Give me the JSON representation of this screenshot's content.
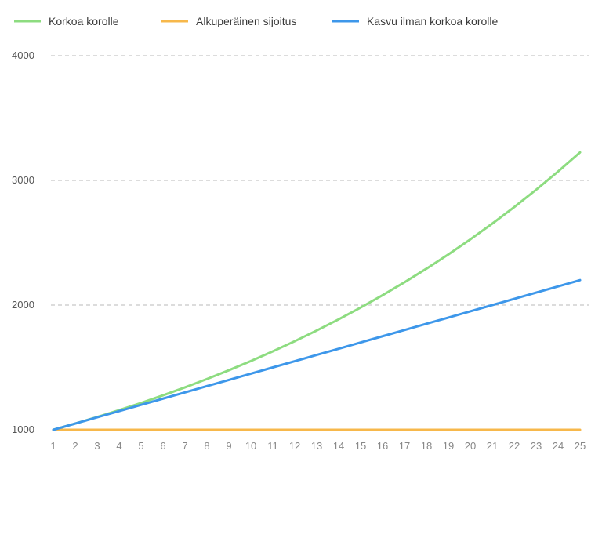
{
  "chart_data": {
    "type": "line",
    "x": [
      1,
      2,
      3,
      4,
      5,
      6,
      7,
      8,
      9,
      10,
      11,
      12,
      13,
      14,
      15,
      16,
      17,
      18,
      19,
      20,
      21,
      22,
      23,
      24,
      25
    ],
    "series": [
      {
        "name": "Korkoa korolle",
        "color": "#8ddc80",
        "values": [
          1000,
          1050,
          1102.5,
          1157.6,
          1215.5,
          1276.3,
          1340.1,
          1407.1,
          1477.5,
          1551.3,
          1628.9,
          1710.3,
          1795.9,
          1885.6,
          1979.9,
          2078.9,
          2182.9,
          2292,
          2406.6,
          2527,
          2653.3,
          2786,
          2925.3,
          3071.5,
          3225.1
        ]
      },
      {
        "name": "Alkuperäinen sijoitus",
        "color": "#f7b84b",
        "values": [
          1000,
          1000,
          1000,
          1000,
          1000,
          1000,
          1000,
          1000,
          1000,
          1000,
          1000,
          1000,
          1000,
          1000,
          1000,
          1000,
          1000,
          1000,
          1000,
          1000,
          1000,
          1000,
          1000,
          1000,
          1000
        ]
      },
      {
        "name": "Kasvu ilman korkoa korolle",
        "color": "#3d97ea",
        "values": [
          1000,
          1050,
          1100,
          1150,
          1200,
          1250,
          1300,
          1350,
          1400,
          1450,
          1500,
          1550,
          1600,
          1650,
          1700,
          1750,
          1800,
          1850,
          1900,
          1950,
          2000,
          2050,
          2100,
          2150,
          2200
        ]
      }
    ],
    "yticks": [
      1000,
      2000,
      3000,
      4000
    ],
    "ylim": [
      1000,
      4000
    ],
    "grid": true,
    "legend_position": "top-left"
  }
}
